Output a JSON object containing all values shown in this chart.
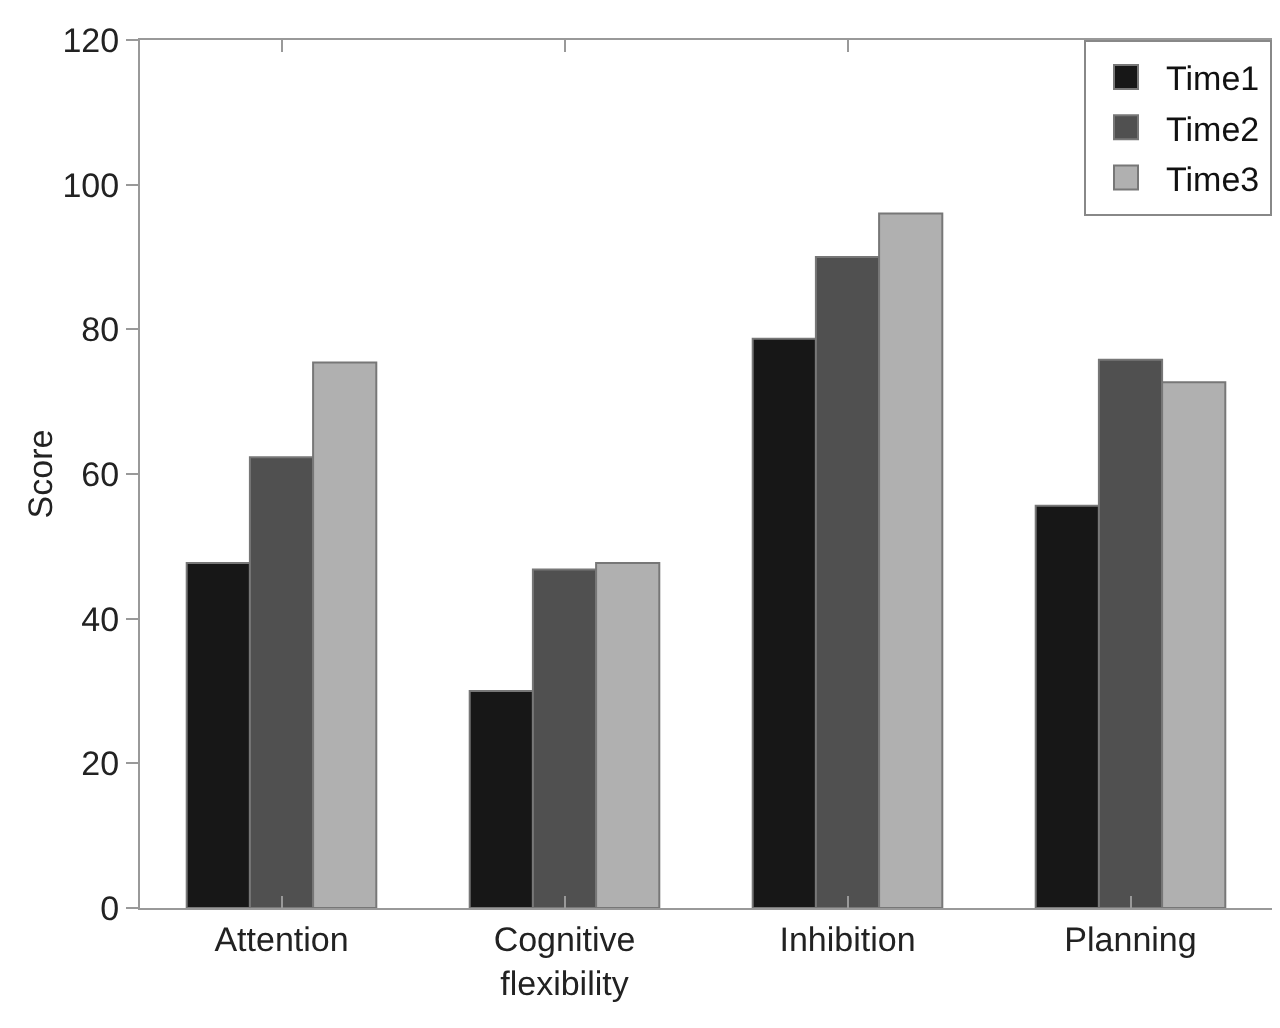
{
  "chart_data": {
    "type": "bar",
    "ylabel": "Score",
    "categories": [
      "Attention",
      "Cognitive\nflexibility",
      "Inhibition",
      "Planning"
    ],
    "series": [
      {
        "name": "Time1",
        "color": "#171717",
        "values": [
          47.7,
          30,
          78.7,
          55.6
        ]
      },
      {
        "name": "Time2",
        "color": "#505050",
        "values": [
          62.3,
          46.8,
          90,
          75.8
        ]
      },
      {
        "name": "Time3",
        "color": "#b0b0b0",
        "values": [
          75.4,
          47.7,
          96,
          72.7
        ]
      }
    ],
    "ylim": [
      0,
      120
    ],
    "yticks": [
      0,
      20,
      40,
      60,
      80,
      100,
      120
    ],
    "grid": false,
    "legend": "top right"
  }
}
